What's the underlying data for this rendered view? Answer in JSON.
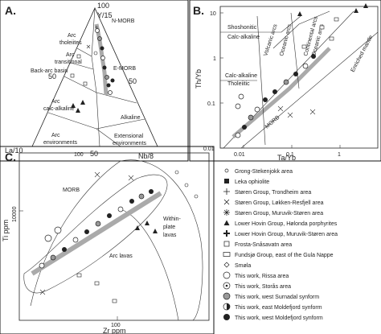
{
  "panelA": {
    "letter": "A.",
    "apex_label": "Y/15",
    "apex_value": "100",
    "left_label": "La/10",
    "right_label": "Nb/8",
    "tick_50_left": "50",
    "tick_50_right": "50",
    "tick_50_bottom": "50",
    "tick_100_bottom": "100",
    "fields": [
      "N-MORB",
      "Arc tholeiites",
      "Arc transitional",
      "Back-arc basin",
      "E-MORB",
      "Arc calc-alkaline",
      "Alkaline",
      "Arc environments",
      "Extensional environments"
    ]
  },
  "panelB": {
    "letter": "B.",
    "xlabel": "Ta/Yb",
    "ylabel": "Th/Yb",
    "xticks": [
      "0.01",
      "0.1",
      "1"
    ],
    "yticks": [
      "0.01",
      "0.1",
      "1",
      "10"
    ],
    "fields": [
      "Shoshonitic",
      "Calc-alkaline",
      "Calc-alkaline",
      "Tholeiitic",
      "Oceanic arcs",
      "Continental arcs",
      "Oceanic arcs",
      "Enriched mantle",
      "MORB"
    ],
    "arcs_label": "Volcanic arcs"
  },
  "panelC": {
    "letter": "C.",
    "xlabel": "Zr ppm",
    "ylabel": "Ti ppm",
    "ytick": "10000",
    "xtick": "100",
    "fields": [
      "MORB",
      "Within-plate lavas",
      "Arc lavas"
    ]
  },
  "legend": [
    {
      "label": "Grong-Stekenjokk area",
      "sym": "circle-small"
    },
    {
      "label": "Leka ophiolite",
      "sym": "square-filled"
    },
    {
      "label": "Støren Group, Trondheim area",
      "sym": "plus"
    },
    {
      "label": "Støren Group, Løkken-Resfjell area",
      "sym": "cross"
    },
    {
      "label": "Støren Group, Muruvik-Støren area",
      "sym": "star"
    },
    {
      "label": "Lower Hovin Group, Hølonda porphyrites",
      "sym": "triangle-filled"
    },
    {
      "label": "Lower Hovin Group, Muruvik-Støren area",
      "sym": "plus-bold"
    },
    {
      "label": "Frosta-Snåsavatn area",
      "sym": "square-open"
    },
    {
      "label": "Fundsjø Group, east of the Gula Nappe",
      "sym": "rect-open"
    },
    {
      "label": "Smøla",
      "sym": "diamond-small"
    },
    {
      "label": "This work, Rissa area",
      "sym": "circle-open"
    },
    {
      "label": "This work, Storås area",
      "sym": "circle-dot"
    },
    {
      "label": "This work, west Surnadal synform",
      "sym": "circle-grey"
    },
    {
      "label": "This work, east Moldefjord synform",
      "sym": "circle-half"
    },
    {
      "label": "This work, west Moldefjord synform",
      "sym": "circle-filled"
    }
  ],
  "chart_data": [
    {
      "type": "scatter",
      "title": "",
      "subtype": "ternary",
      "axes": [
        "Y/15",
        "La/10",
        "Nb/8"
      ],
      "fields": [
        "N-MORB",
        "Arc tholeiites",
        "Arc transitional",
        "Back-arc basin",
        "E-MORB",
        "Arc calc-alkaline",
        "Alkaline",
        "Arc environments",
        "Extensional environments"
      ]
    },
    {
      "type": "scatter",
      "title": "",
      "xlabel": "Ta/Yb",
      "ylabel": "Th/Yb",
      "xscale": "log",
      "yscale": "log",
      "xlim": [
        0.005,
        5
      ],
      "ylim": [
        0.01,
        20
      ],
      "xticks": [
        0.01,
        0.1,
        1
      ],
      "yticks": [
        0.01,
        0.1,
        1,
        10
      ],
      "fields": [
        "Shoshonitic",
        "Calc-alkaline",
        "Calc-alkaline",
        "Tholeiitic",
        "Oceanic arcs",
        "Continental arcs",
        "Oceanic arcs",
        "Enriched mantle",
        "MORB"
      ]
    },
    {
      "type": "scatter",
      "title": "",
      "xlabel": "Zr ppm",
      "ylabel": "Ti ppm",
      "xscale": "log",
      "yscale": "log",
      "xticks": [
        100
      ],
      "yticks": [
        10000
      ],
      "fields": [
        "MORB",
        "Within-plate lavas",
        "Arc lavas"
      ]
    }
  ]
}
